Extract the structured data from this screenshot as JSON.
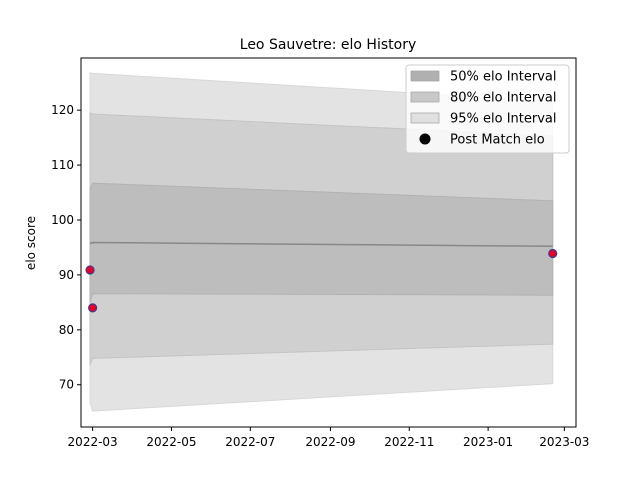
{
  "chart_data": {
    "type": "line",
    "title": "Leo Sauvetre: elo History",
    "xlabel": "",
    "ylabel": "elo score",
    "x_ticks": [
      "2022-03",
      "2022-05",
      "2022-07",
      "2022-09",
      "2022-11",
      "2023-01",
      "2023-03"
    ],
    "x_tick_dates": [
      "2022-03-01",
      "2022-05-01",
      "2022-07-01",
      "2022-09-01",
      "2022-11-01",
      "2023-01-01",
      "2023-03-01"
    ],
    "xlim": [
      "2022-02-20",
      "2023-03-10"
    ],
    "y_ticks": [
      70,
      80,
      90,
      100,
      110,
      120
    ],
    "ylim": [
      62.3,
      129.5
    ],
    "dates": [
      "2022-02-27",
      "2022-03-01",
      "2023-02-20"
    ],
    "mean": [
      95.7,
      95.9,
      95.2
    ],
    "band50": {
      "low": [
        85.0,
        86.6,
        86.3
      ],
      "high": [
        105.5,
        106.7,
        103.5
      ]
    },
    "band80": {
      "low": [
        73.6,
        74.8,
        77.4
      ],
      "high": [
        119.5,
        119.3,
        115.3
      ]
    },
    "band95": {
      "low": [
        66.7,
        65.2,
        70.2
      ],
      "high": [
        126.8,
        126.7,
        121.6
      ]
    },
    "post_match": [
      {
        "date": "2022-02-27",
        "elo": 90.9
      },
      {
        "date": "2022-03-01",
        "elo": 84.0
      },
      {
        "date": "2023-02-20",
        "elo": 93.9
      }
    ],
    "legend": {
      "placement": "top-right",
      "entries": [
        {
          "label": "50% elo Interval",
          "color": "#b0b0b0"
        },
        {
          "label": "80% elo Interval",
          "color": "#c8c8c8"
        },
        {
          "label": "95% elo Interval",
          "color": "#e0e0e0"
        },
        {
          "label": "Post Match elo",
          "color": "#000000"
        }
      ]
    },
    "colors": {
      "band50": "#bdbdbd",
      "band80": "#d0d0d0",
      "band95": "#e3e3e3",
      "mean_line": "#888888",
      "point_fill": "#e8002a",
      "point_edge": "#3a3f8f"
    }
  }
}
